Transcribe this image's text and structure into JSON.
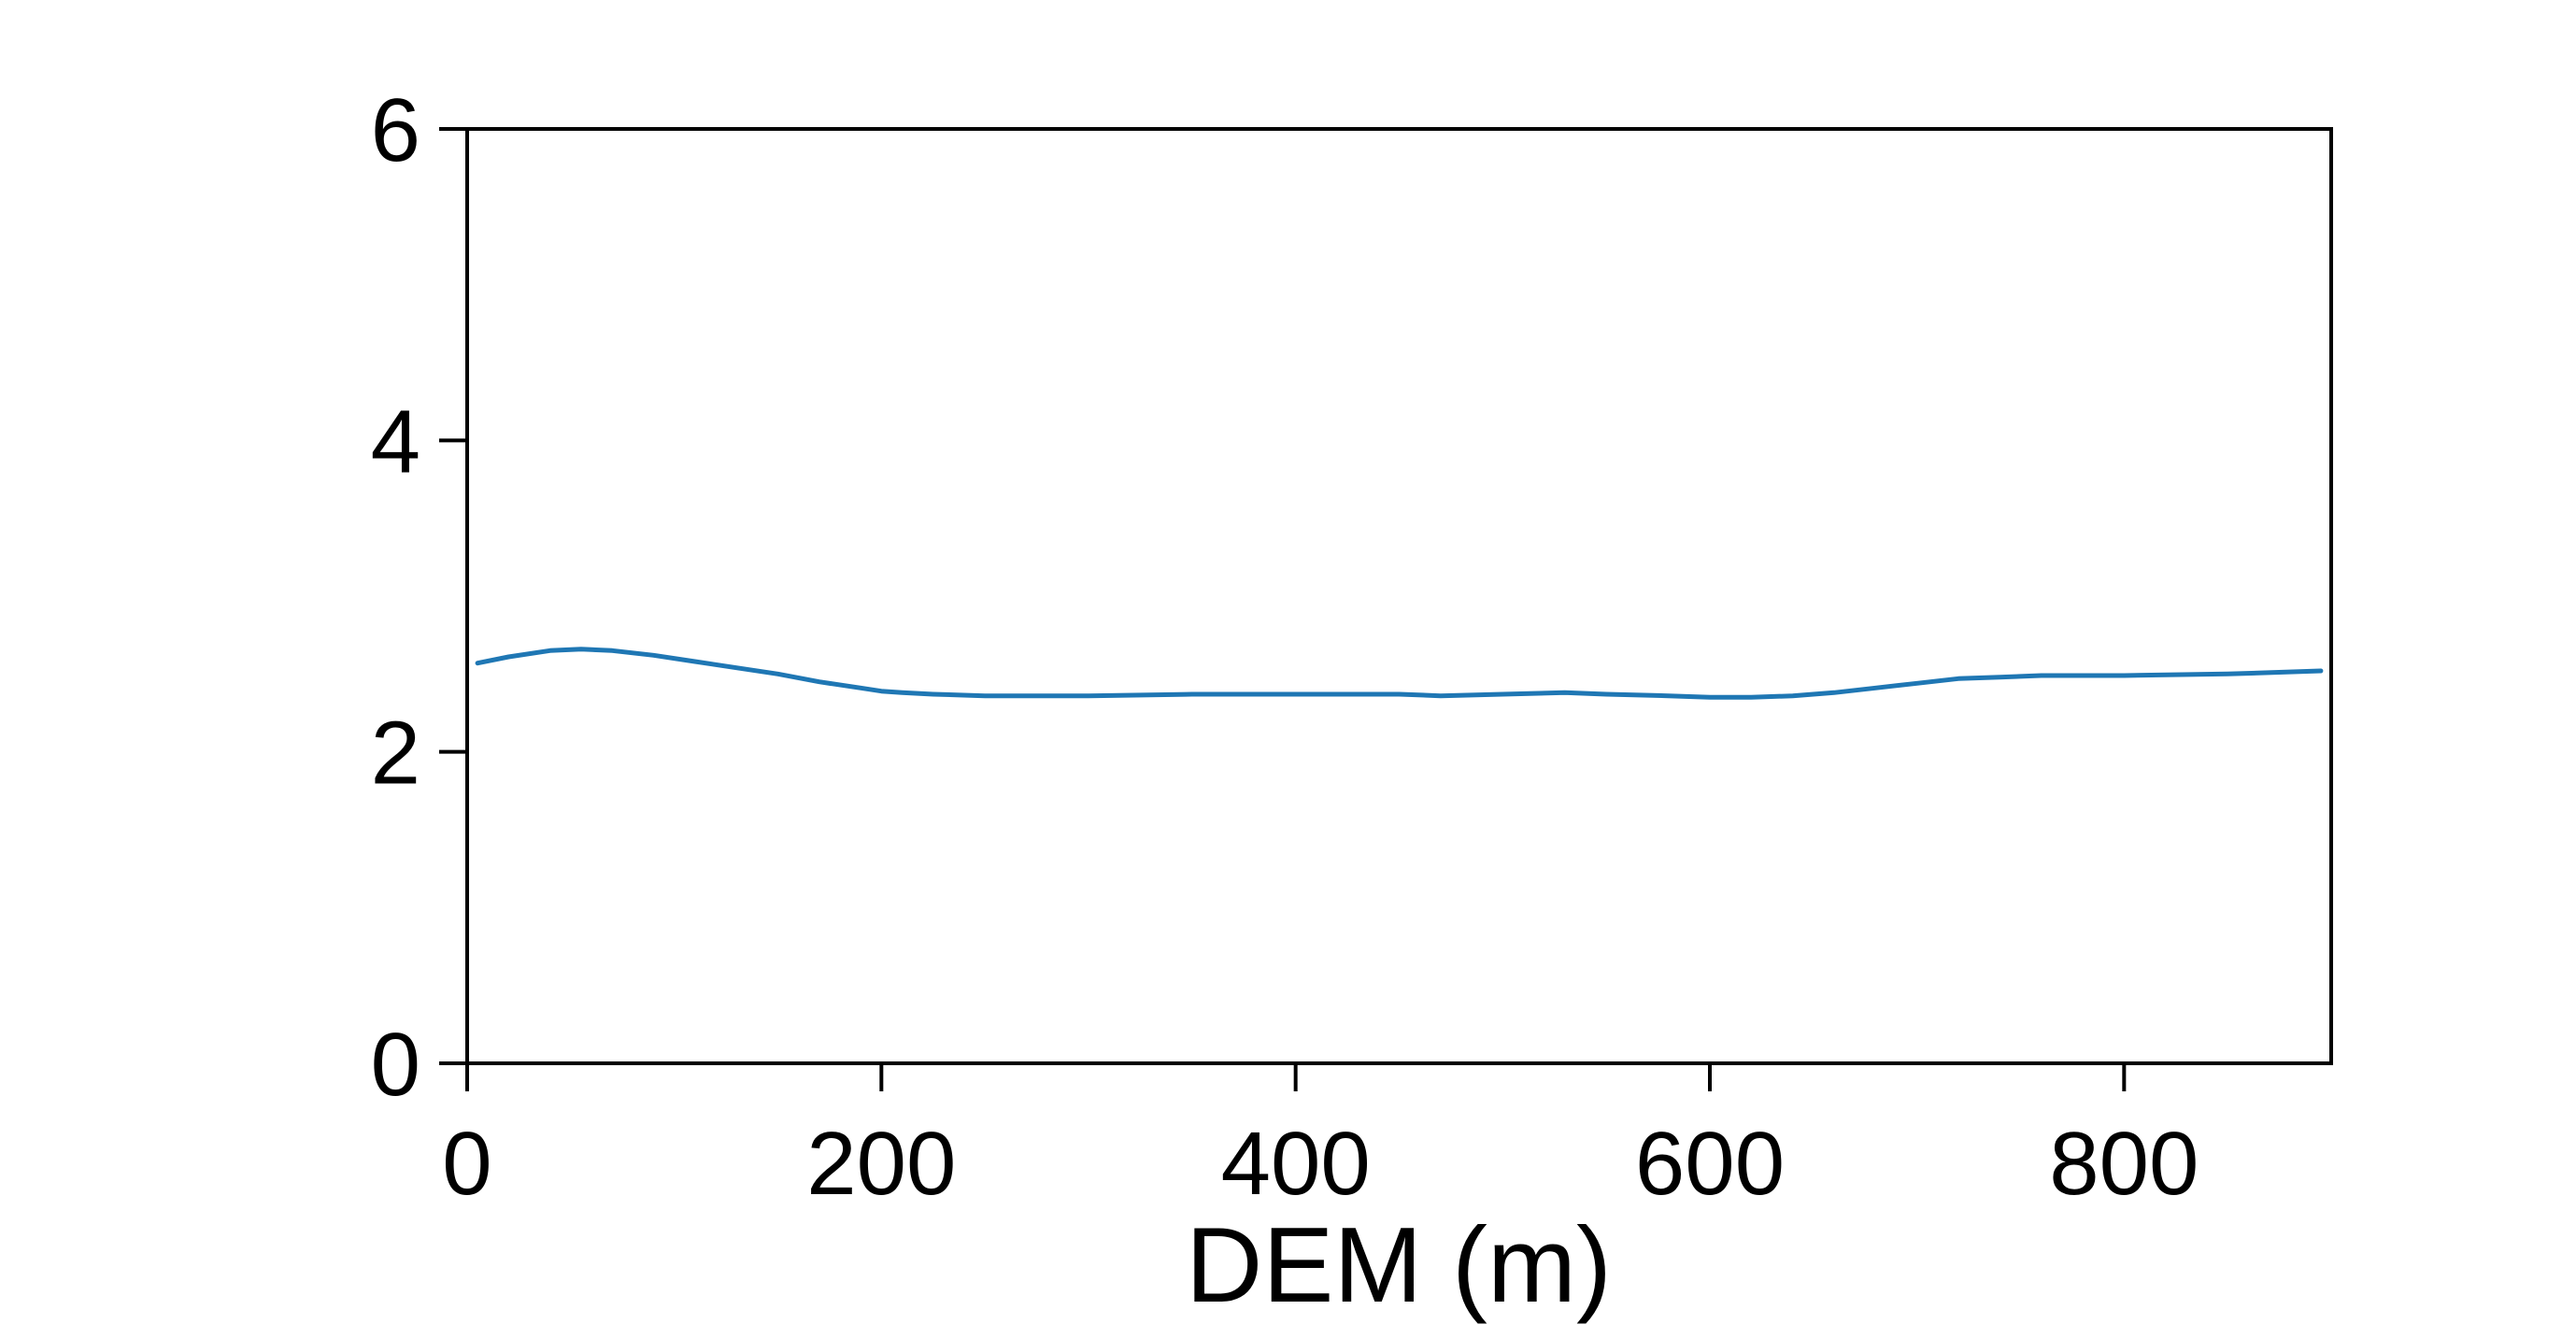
{
  "chart_data": {
    "type": "line",
    "title": "",
    "xlabel": "DEM (m)",
    "ylabel": "",
    "xlim": [
      0,
      900
    ],
    "ylim": [
      0,
      6
    ],
    "x_ticks": [
      0,
      200,
      400,
      600,
      800
    ],
    "y_ticks": [
      0,
      2,
      4,
      6
    ],
    "grid": false,
    "legend": "none",
    "series": [
      {
        "color": "#1f77b4",
        "x": [
          5,
          20,
          40,
          55,
          70,
          90,
          110,
          130,
          150,
          170,
          190,
          200,
          210,
          225,
          250,
          300,
          350,
          400,
          450,
          470,
          500,
          530,
          550,
          580,
          600,
          620,
          640,
          660,
          680,
          700,
          720,
          740,
          760,
          800,
          850,
          895
        ],
        "y": [
          2.57,
          2.61,
          2.65,
          2.66,
          2.65,
          2.62,
          2.58,
          2.54,
          2.5,
          2.45,
          2.41,
          2.39,
          2.38,
          2.37,
          2.36,
          2.36,
          2.37,
          2.37,
          2.37,
          2.36,
          2.37,
          2.38,
          2.37,
          2.36,
          2.35,
          2.35,
          2.36,
          2.38,
          2.41,
          2.44,
          2.47,
          2.48,
          2.49,
          2.49,
          2.5,
          2.52
        ]
      }
    ]
  }
}
